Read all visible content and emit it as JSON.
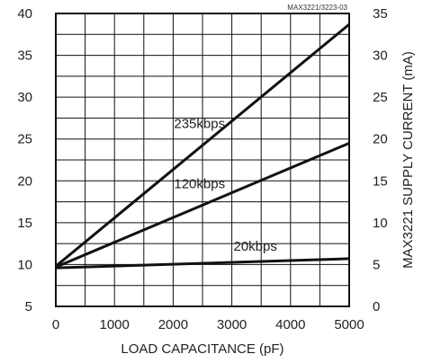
{
  "chart_data": {
    "type": "line",
    "xlabel": "LOAD CAPACITANCE (pF)",
    "ylabel_right": "MAX3221 SUPPLY CURRENT (mA)",
    "xlim": [
      0,
      5000
    ],
    "ylim_left": [
      5,
      40
    ],
    "ylim_right": [
      0,
      35
    ],
    "x_ticks": [
      "0",
      "1000",
      "2000",
      "3000",
      "4000",
      "5000"
    ],
    "y_ticks_left": [
      "5",
      "10",
      "15",
      "20",
      "25",
      "30",
      "35",
      "40"
    ],
    "y_ticks_right": [
      "0",
      "5",
      "10",
      "15",
      "20",
      "25",
      "30",
      "35"
    ],
    "grid": true,
    "corner_note": "MAX3221/3223-03",
    "series": [
      {
        "name": "235kbps",
        "x": [
          0,
          5000
        ],
        "y": [
          9.8,
          38.7
        ]
      },
      {
        "name": "120kbps",
        "x": [
          0,
          5000
        ],
        "y": [
          9.7,
          24.5
        ]
      },
      {
        "name": "20kbps",
        "x": [
          0,
          5000
        ],
        "y": [
          9.6,
          10.7
        ]
      }
    ]
  }
}
